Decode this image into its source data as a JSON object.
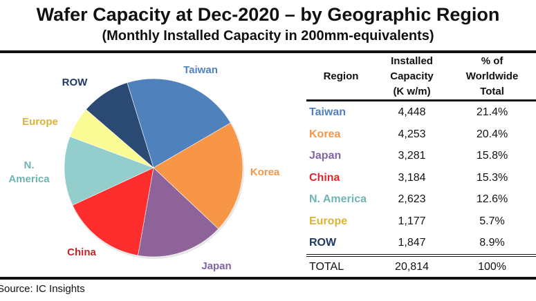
{
  "title": "Wafer Capacity at Dec-2020 – by Geographic Region",
  "subtitle": "(Monthly Installed Capacity in 200mm-equivalents)",
  "source": "Source:  IC Insights",
  "table": {
    "headers": {
      "region": "Region",
      "capacity": [
        "Installed",
        "Capacity",
        "(K w/m)"
      ],
      "percent": [
        "% of",
        "Worldwide",
        "Total"
      ]
    },
    "rows": [
      {
        "region": "Taiwan",
        "capacity": "4,448",
        "percent": "21.4%",
        "color": "#4F81BD"
      },
      {
        "region": "Korea",
        "capacity": "4,253",
        "percent": "20.4%",
        "color": "#F79646"
      },
      {
        "region": "Japan",
        "capacity": "3,281",
        "percent": "15.8%",
        "color": "#8064A2"
      },
      {
        "region": "China",
        "capacity": "3,184",
        "percent": "15.3%",
        "color": "#E0262A"
      },
      {
        "region": "N. America",
        "capacity": "2,623",
        "percent": "12.6%",
        "color": "#6FB3B3"
      },
      {
        "region": "Europe",
        "capacity": "1,177",
        "percent": "5.7%",
        "color": "#D9B437"
      },
      {
        "region": "ROW",
        "capacity": "1,847",
        "percent": "8.9%",
        "color": "#1F3864"
      }
    ],
    "total": {
      "region": "TOTAL",
      "capacity": "20,814",
      "percent": "100%"
    }
  },
  "chart_data": {
    "type": "pie",
    "title": "Wafer Capacity at Dec-2020 – by Geographic Region",
    "subtitle": "(Monthly Installed Capacity in 200mm-equivalents)",
    "units": "K wafers/month (200mm-equivalent)",
    "categories": [
      "Taiwan",
      "Korea",
      "Japan",
      "China",
      "N. America",
      "Europe",
      "ROW"
    ],
    "values": [
      4448,
      4253,
      3281,
      3184,
      2623,
      1177,
      1847
    ],
    "percentages": [
      21.4,
      20.4,
      15.8,
      15.3,
      12.6,
      5.7,
      8.9
    ],
    "slice_colors": [
      "#4F81BD",
      "#F79646",
      "#8E6399",
      "#FF2E2E",
      "#93CDCC",
      "#FBFB96",
      "#2A4A73"
    ],
    "label_colors": [
      "#4F81BD",
      "#F79646",
      "#8064A2",
      "#C0262A",
      "#6FB3B3",
      "#D9B437",
      "#1F3864"
    ],
    "labels": [
      "Taiwan",
      "Korea",
      "Japan",
      "China",
      "N. America",
      "Europe",
      "ROW"
    ],
    "legend": "none"
  }
}
